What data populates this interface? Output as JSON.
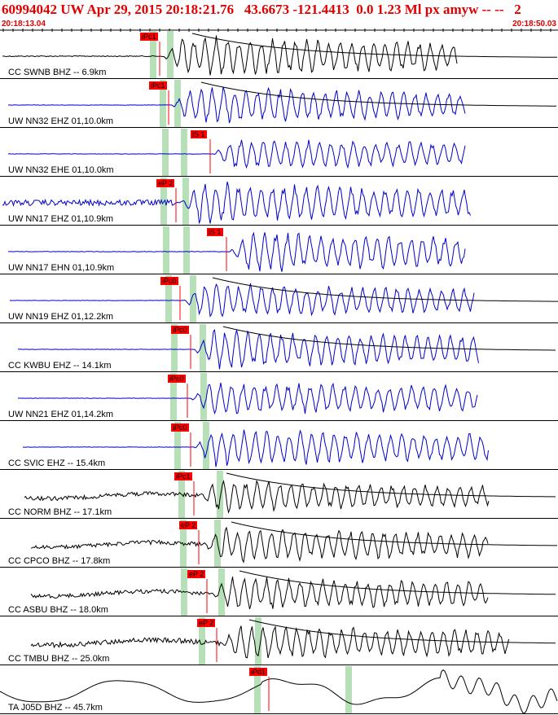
{
  "header": {
    "title": "60994042 UW Apr 29, 2015 20:18:21.76   43.6673 -121.4413  0.0 1.23 Ml px amyw -- --   2",
    "time_start": "20:18:13.04",
    "time_end": "20:18:50.03"
  },
  "colors": {
    "header_text": "#e00000",
    "trace_black": "#000000",
    "trace_blue": "#0000cc",
    "pick": "#ff0000",
    "pick_window": "#b8e0b8",
    "envelope": "#cc0000"
  },
  "traces": [
    {
      "label": "CC SWNB BHZ -- 6.9km",
      "color": "black",
      "pick": "iPc1",
      "hasTheory": true
    },
    {
      "label": "UW NN32 EHZ 01,10.0km",
      "color": "blue",
      "pick": "iPc1",
      "hasTheory": true
    },
    {
      "label": "UW NN32 EHE 01,10.0km",
      "color": "blue",
      "pick": "iS 1",
      "hasTheory": false
    },
    {
      "label": "UW NN17 EHZ 01,10.9km",
      "color": "blue",
      "pick": "eP 2",
      "hasTheory": false
    },
    {
      "label": "UW NN17 EHN 01,10.9km",
      "color": "blue",
      "pick": "iS 1",
      "hasTheory": false
    },
    {
      "label": "UW NN19 EHZ 01,12.2km",
      "color": "blue",
      "pick": "iPc0",
      "hasTheory": true
    },
    {
      "label": "CC KWBU EHZ -- 14.1km",
      "color": "blue",
      "pick": "iPc0",
      "hasTheory": true
    },
    {
      "label": "UW NN21 EHZ 01,14.2km",
      "color": "blue",
      "pick": "iPc0",
      "hasTheory": false
    },
    {
      "label": "CC SVIC EHZ -- 15.4km",
      "color": "blue",
      "pick": "iPc0",
      "hasTheory": false
    },
    {
      "label": "CC NORM BHZ -- 17.1km",
      "color": "black",
      "pick": "iPc1",
      "hasTheory": true
    },
    {
      "label": "CC CPCO BHZ -- 17.8km",
      "color": "black",
      "pick": "eP 2",
      "hasTheory": true
    },
    {
      "label": "CC ASBU BHZ -- 18.0km",
      "color": "black",
      "pick": "eP 2",
      "hasTheory": true
    },
    {
      "label": "CC TMBU BHZ -- 25.0km",
      "color": "black",
      "pick": "eP 2",
      "hasTheory": true
    },
    {
      "label": "TA J05D BHZ -- 45.7km",
      "color": "black",
      "pick": "iPd1",
      "hasTheory": false
    }
  ]
}
